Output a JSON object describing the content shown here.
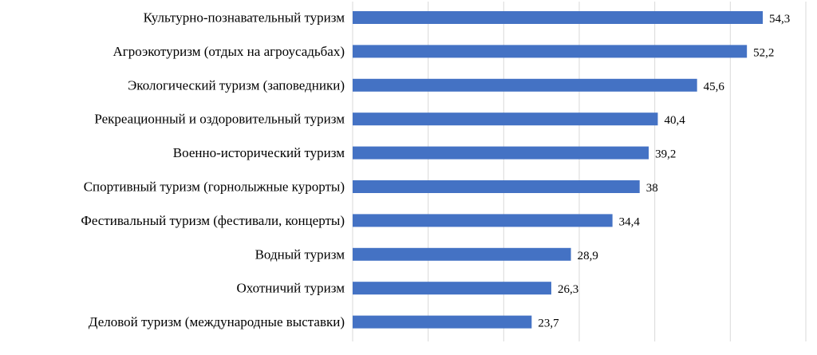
{
  "chart_data": {
    "type": "bar",
    "orientation": "horizontal",
    "categories": [
      "Культурно-познавательный туризм",
      "Агроэкотуризм (отдых на агроусадьбах)",
      "Экологический туризм (заповедники)",
      "Рекреационный и оздоровительный туризм",
      "Военно-исторический туризм",
      "Спортивный туризм (горнолыжные курорты)",
      "Фестивальный туризм (фестивали, концерты)",
      "Водный туризм",
      "Охотничий туризм",
      "Деловой туризм (международные выставки)"
    ],
    "values": [
      54.3,
      52.2,
      45.6,
      40.4,
      39.2,
      38,
      34.4,
      28.9,
      26.3,
      23.7
    ],
    "value_labels": [
      "54,3",
      "52,2",
      "45,6",
      "40,4",
      "39,2",
      "38",
      "34,4",
      "28,9",
      "26,3",
      "23,7"
    ],
    "xlim": [
      0,
      60
    ],
    "grid": true,
    "title": "",
    "xlabel": "",
    "ylabel": "",
    "bar_color": "#4472C4",
    "grid_color": "#D9D9D9"
  }
}
